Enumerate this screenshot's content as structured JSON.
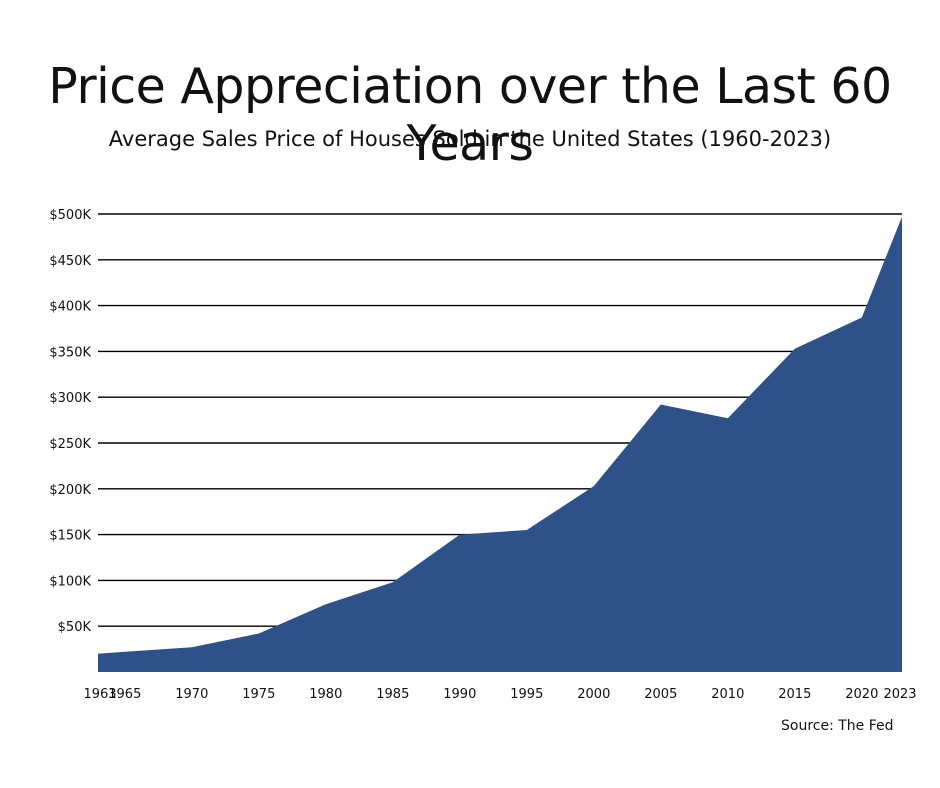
{
  "chart_data": {
    "type": "area",
    "title": "Price Appreciation over the Last 60 Years",
    "subtitle": "Average Sales Price of Houses Sold in the United States (1960-2023)",
    "source": "Source: The Fed",
    "fill_color": "#2f5189",
    "grid_color": "#000000",
    "grid": true,
    "xlabel": "",
    "ylabel": "",
    "ylim": [
      0,
      500000
    ],
    "y_ticks": [
      {
        "value": 50000,
        "label": "$50K"
      },
      {
        "value": 100000,
        "label": "$100K"
      },
      {
        "value": 150000,
        "label": "$150K"
      },
      {
        "value": 200000,
        "label": "$200K"
      },
      {
        "value": 250000,
        "label": "$250K"
      },
      {
        "value": 300000,
        "label": "$300K"
      },
      {
        "value": 350000,
        "label": "$350K"
      },
      {
        "value": 400000,
        "label": "$400K"
      },
      {
        "value": 450000,
        "label": "$450K"
      },
      {
        "value": 500000,
        "label": "$500K"
      }
    ],
    "x_ticks": [
      "1963",
      "1965",
      "1970",
      "1975",
      "1980",
      "1985",
      "1990",
      "1995",
      "2000",
      "2005",
      "2010",
      "2015",
      "2020",
      "2023"
    ],
    "series": [
      {
        "values": [
          {
            "x": "1963",
            "y": 20000
          },
          {
            "x": "1965",
            "y": 22000
          },
          {
            "x": "1970",
            "y": 27000
          },
          {
            "x": "1975",
            "y": 42000
          },
          {
            "x": "1980",
            "y": 74000
          },
          {
            "x": "1985",
            "y": 98000
          },
          {
            "x": "1990",
            "y": 150000
          },
          {
            "x": "1995",
            "y": 155000
          },
          {
            "x": "2000",
            "y": 203000
          },
          {
            "x": "2005",
            "y": 292000
          },
          {
            "x": "2010",
            "y": 277000
          },
          {
            "x": "2015",
            "y": 353000
          },
          {
            "x": "2020",
            "y": 387000
          },
          {
            "x": "2023",
            "y": 497000
          }
        ]
      }
    ]
  }
}
